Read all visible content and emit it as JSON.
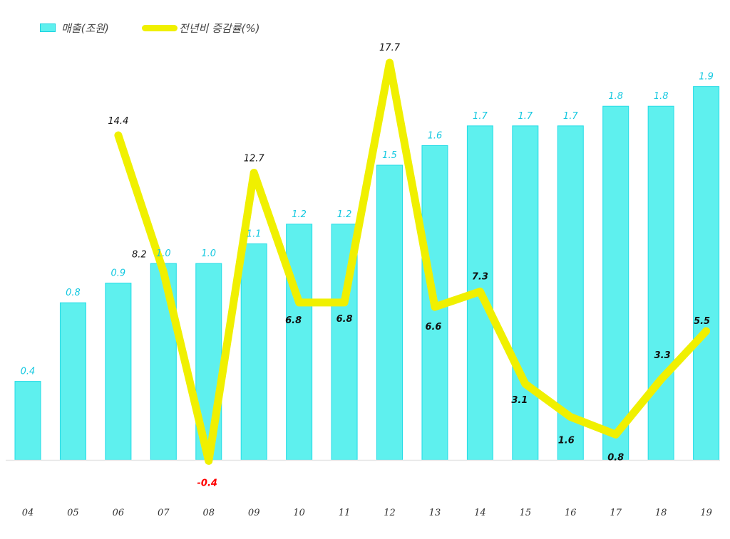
{
  "chart_data": {
    "type": "bar+line",
    "categories": [
      "04",
      "05",
      "06",
      "07",
      "08",
      "09",
      "10",
      "11",
      "12",
      "13",
      "14",
      "15",
      "16",
      "17",
      "18",
      "19"
    ],
    "series": [
      {
        "name": "매출(조원)",
        "type": "bar",
        "color": "#5ef0ee",
        "label_color": "#14c8e0",
        "values": [
          0.4,
          0.8,
          0.9,
          1.0,
          1.0,
          1.1,
          1.2,
          1.2,
          1.5,
          1.6,
          1.7,
          1.7,
          1.7,
          1.8,
          1.8,
          1.9
        ],
        "labels": [
          "0.4",
          "0.8",
          "0.9",
          "1.0",
          "1.0",
          "1.1",
          "1.2",
          "1.2",
          "1.5",
          "1.6",
          "1.7",
          "1.7",
          "1.7",
          "1.8",
          "1.8",
          "1.9"
        ]
      },
      {
        "name": "전년비 증감률(%)",
        "type": "line",
        "color": "#f0f000",
        "label_color": "#111111",
        "negative_label_color": "#ff0000",
        "values": [
          null,
          null,
          14.4,
          8.2,
          -0.4,
          12.7,
          6.8,
          6.8,
          17.7,
          6.6,
          7.3,
          3.1,
          1.6,
          0.8,
          3.3,
          5.5
        ],
        "labels": [
          "",
          "",
          "14.4",
          "8.2",
          "-0.4",
          "12.7",
          "6.8",
          "6.8",
          "17.7",
          "6.6",
          "7.3",
          "3.1",
          "1.6",
          "0.8",
          "3.3",
          "5.5"
        ]
      }
    ],
    "title": "",
    "xlabel": "",
    "ylabel": "",
    "ylim_bar": [
      0,
      2.0
    ],
    "ylim_line": [
      -1,
      20
    ],
    "grid": false,
    "legend_position": "top-left"
  }
}
